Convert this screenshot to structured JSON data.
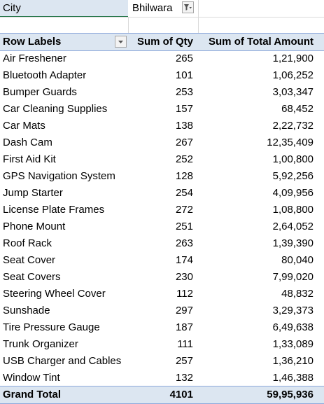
{
  "filter": {
    "label": "City",
    "value": "Bhilwara"
  },
  "headers": {
    "row_labels": "Row Labels",
    "qty": "Sum of Qty",
    "amount": "Sum of Total Amount"
  },
  "rows": [
    {
      "label": "Air Freshener",
      "qty": "265",
      "amount": "1,21,900"
    },
    {
      "label": "Bluetooth Adapter",
      "qty": "101",
      "amount": "1,06,252"
    },
    {
      "label": "Bumper Guards",
      "qty": "253",
      "amount": "3,03,347"
    },
    {
      "label": "Car Cleaning Supplies",
      "qty": "157",
      "amount": "68,452"
    },
    {
      "label": "Car Mats",
      "qty": "138",
      "amount": "2,22,732"
    },
    {
      "label": "Dash Cam",
      "qty": "267",
      "amount": "12,35,409"
    },
    {
      "label": "First Aid Kit",
      "qty": "252",
      "amount": "1,00,800"
    },
    {
      "label": "GPS Navigation System",
      "qty": "128",
      "amount": "5,92,256"
    },
    {
      "label": "Jump Starter",
      "qty": "254",
      "amount": "4,09,956"
    },
    {
      "label": "License Plate Frames",
      "qty": "272",
      "amount": "1,08,800"
    },
    {
      "label": "Phone Mount",
      "qty": "251",
      "amount": "2,64,052"
    },
    {
      "label": "Roof Rack",
      "qty": "263",
      "amount": "1,39,390"
    },
    {
      "label": "Seat Cover",
      "qty": "174",
      "amount": "80,040"
    },
    {
      "label": "Seat Covers",
      "qty": "230",
      "amount": "7,99,020"
    },
    {
      "label": "Steering Wheel Cover",
      "qty": "112",
      "amount": "48,832"
    },
    {
      "label": "Sunshade",
      "qty": "297",
      "amount": "3,29,373"
    },
    {
      "label": "Tire Pressure Gauge",
      "qty": "187",
      "amount": "6,49,638"
    },
    {
      "label": "Trunk Organizer",
      "qty": "111",
      "amount": "1,33,089"
    },
    {
      "label": "USB Charger and Cables",
      "qty": "257",
      "amount": "1,36,210"
    },
    {
      "label": "Window Tint",
      "qty": "132",
      "amount": "1,46,388"
    }
  ],
  "total": {
    "label": "Grand Total",
    "qty": "4101",
    "amount": "59,95,936"
  },
  "colors": {
    "header_fill": "#dce6f1",
    "header_border": "#8ea9db",
    "selection_green": "#217346"
  },
  "icons": {
    "filter_button": "filter-applied-icon",
    "row_labels_button": "dropdown-arrow-icon"
  }
}
